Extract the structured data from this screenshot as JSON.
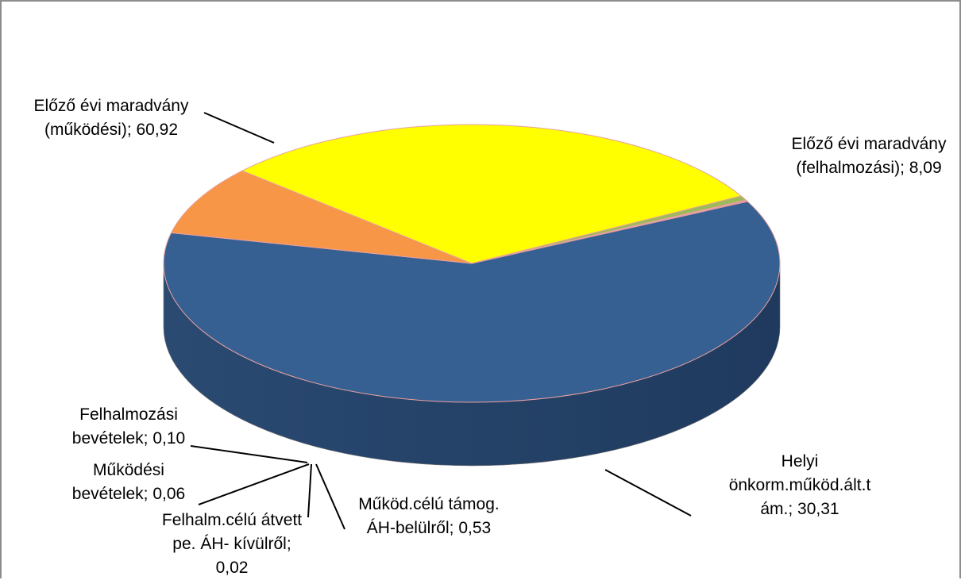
{
  "chart_data": {
    "type": "pie",
    "title": "",
    "label_separator": ";  ",
    "slices": [
      {
        "label": [
          "Előző évi maradvány",
          "(működési)"
        ],
        "value": 60.92,
        "value_text": "60,92",
        "color": "#376092"
      },
      {
        "label": [
          "Előző évi maradvány",
          "(felhalmozási)"
        ],
        "value": 8.09,
        "value_text": "8,09",
        "color": "#f79646"
      },
      {
        "label": [
          "Helyi",
          "önkorm.működ.ált.t",
          "ám."
        ],
        "value": 30.31,
        "value_text": "30,31",
        "color": "#ffff00"
      },
      {
        "label": [
          "Működ.célú támog.",
          "ÁH-belülről"
        ],
        "value": 0.53,
        "value_text": "0,53",
        "color": "#9bbb59"
      },
      {
        "label": [
          "Felhalm.célú átvett",
          "pe. ÁH- kívülről;"
        ],
        "value": 0.02,
        "value_text": "0,02",
        "color": "#8064a2"
      },
      {
        "label": [
          "Működési",
          "bevételek"
        ],
        "value": 0.06,
        "value_text": "0,06",
        "color": "#4bacc6"
      },
      {
        "label": [
          "Felhalmozási",
          "bevételek"
        ],
        "value": 0.1,
        "value_text": "0,10",
        "color": "#c0504d"
      }
    ]
  }
}
